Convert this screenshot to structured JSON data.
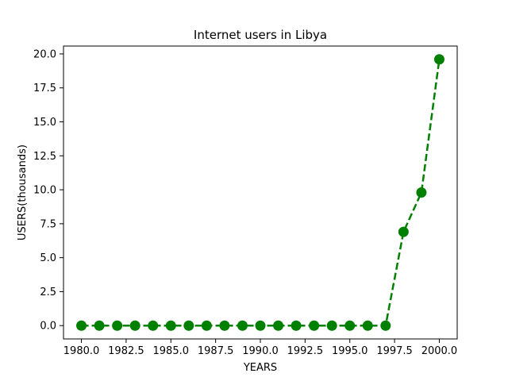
{
  "chart_data": {
    "type": "line",
    "title": "Internet users in Libya",
    "xlabel": "YEARS",
    "ylabel": "USERS(thousands)",
    "x": [
      1980,
      1981,
      1982,
      1983,
      1984,
      1985,
      1986,
      1987,
      1988,
      1989,
      1990,
      1991,
      1992,
      1993,
      1994,
      1995,
      1996,
      1997,
      1998,
      1999,
      2000
    ],
    "series": [
      {
        "values": [
          0,
          0,
          0,
          0,
          0,
          0,
          0,
          0,
          0,
          0,
          0,
          0,
          0,
          0,
          0,
          0,
          0,
          0,
          6.9,
          9.8,
          19.6
        ],
        "color": "#008000",
        "line_style": "dashed",
        "marker": "circle"
      }
    ],
    "xlim": [
      1979,
      2001
    ],
    "ylim": [
      -0.98,
      20.58
    ],
    "xticks": [
      "1980.0",
      "1982.5",
      "1985.0",
      "1987.5",
      "1990.0",
      "1992.5",
      "1995.0",
      "1997.5",
      "2000.0"
    ],
    "yticks": [
      "0.0",
      "2.5",
      "5.0",
      "7.5",
      "10.0",
      "12.5",
      "15.0",
      "17.5",
      "20.0"
    ],
    "grid": false,
    "legend": false
  }
}
